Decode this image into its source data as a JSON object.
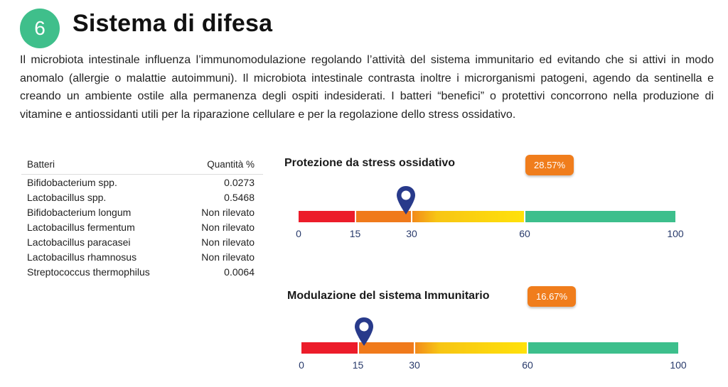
{
  "section": {
    "number": "6",
    "title": "Sistema di difesa",
    "description": "Il microbiota intestinale influenza l’immunomodulazione regolando l’attività del sistema immunitario ed evitando che si attivi in modo anomalo (allergie o malattie autoimmuni). Il microbiota intestinale contrasta inoltre i microrganismi patogeni, agendo da sentinella e creando un ambiente ostile alla permanenza degli ospiti indesiderati. I batteri “benefici” o protettivi concorrono nella produzione di vitamine e antiossidanti utili per la riparazione cellulare e per la regolazione dello stress ossidativo."
  },
  "table": {
    "headers": {
      "name": "Batteri",
      "value": "Quantità %"
    },
    "rows": [
      {
        "name": "Bifidobacterium spp.",
        "value": "0.0273"
      },
      {
        "name": "Lactobacillus spp.",
        "value": "0.5468"
      },
      {
        "name": "Bifidobacterium longum",
        "value": "Non rilevato"
      },
      {
        "name": "Lactobacillus fermentum",
        "value": "Non rilevato"
      },
      {
        "name": "Lactobacillus paracasei",
        "value": "Non rilevato"
      },
      {
        "name": "Lactobacillus rhamnosus",
        "value": "Non rilevato"
      },
      {
        "name": "Streptococcus thermophilus",
        "value": "0.0064"
      }
    ]
  },
  "gauges": [
    {
      "title": "Protezione da stress ossidativo",
      "badge": "28.57%",
      "value": 28.57,
      "ticks": [
        "0",
        "15",
        "30",
        "60",
        "100"
      ]
    },
    {
      "title": "Modulazione del sistema Immunitario",
      "badge": "16.67%",
      "value": 16.67,
      "ticks": [
        "0",
        "15",
        "30",
        "60",
        "100"
      ]
    }
  ],
  "colors": {
    "badge": "#3fbf8b",
    "red": "#ec1c2a",
    "orange": "#f07a1b",
    "yellow": "#ffe10a",
    "green": "#3dbf8c",
    "pin": "#283a8b",
    "value_badge": "#f07d1c"
  },
  "icons": {
    "marker": "map-pin-icon"
  }
}
